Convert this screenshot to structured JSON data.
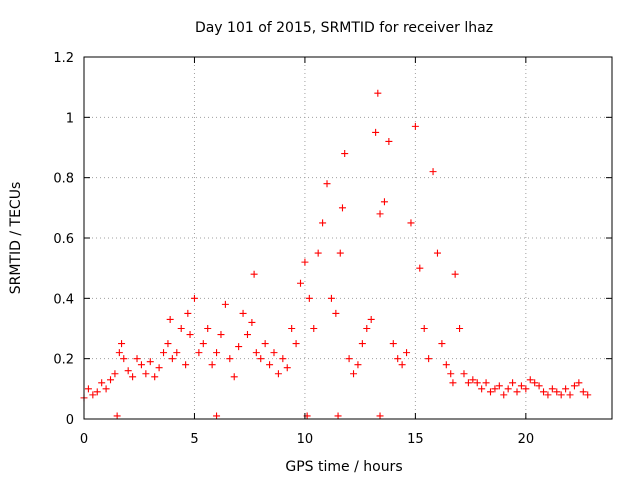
{
  "chart_data": {
    "type": "scatter",
    "title": "Day 101 of 2015, SRMTID for receiver lhaz",
    "xlabel": "GPS time / hours",
    "ylabel": "SRMTID / TECUs",
    "xlim": [
      0,
      23.9
    ],
    "ylim": [
      0,
      1.2
    ],
    "xticks": [
      0,
      5,
      10,
      15,
      20
    ],
    "xtick_labels": [
      "0",
      "5",
      "10",
      "15",
      "20"
    ],
    "yticks": [
      0,
      0.2,
      0.4,
      0.6,
      0.8,
      1,
      1.2
    ],
    "ytick_labels": [
      "0",
      "0.2",
      "0.4",
      "0.6",
      "0.8",
      "1",
      "1.2"
    ],
    "grid": true,
    "marker": "plus",
    "series": [
      {
        "name": "SRMTID",
        "color": "#ff0000",
        "x": [
          0.0,
          0.2,
          0.4,
          0.6,
          0.8,
          1.0,
          1.2,
          1.4,
          1.6,
          1.7,
          1.8,
          2.0,
          2.2,
          2.4,
          2.6,
          2.8,
          3.0,
          3.2,
          3.4,
          3.6,
          3.8,
          3.9,
          4.0,
          4.2,
          4.4,
          4.6,
          4.7,
          4.8,
          5.0,
          5.2,
          5.4,
          5.6,
          5.8,
          6.0,
          6.2,
          6.4,
          6.6,
          6.8,
          7.0,
          7.2,
          7.4,
          7.6,
          7.7,
          7.8,
          8.0,
          8.2,
          8.4,
          8.6,
          8.8,
          9.0,
          9.2,
          9.4,
          9.6,
          9.8,
          10.0,
          10.2,
          10.4,
          10.6,
          10.8,
          11.0,
          11.2,
          11.4,
          11.6,
          11.7,
          11.8,
          12.0,
          12.2,
          12.4,
          12.6,
          12.8,
          13.0,
          13.2,
          13.3,
          13.4,
          13.6,
          13.8,
          14.0,
          14.2,
          14.4,
          14.6,
          14.8,
          15.0,
          15.2,
          15.4,
          15.6,
          15.8,
          16.0,
          16.2,
          16.4,
          16.6,
          16.7,
          16.8,
          17.0,
          17.2,
          17.4,
          17.6,
          17.8,
          18.0,
          18.2,
          18.4,
          18.6,
          18.8,
          19.0,
          19.2,
          19.4,
          19.6,
          19.8,
          20.0,
          20.2,
          20.4,
          20.6,
          20.8,
          21.0,
          21.2,
          21.4,
          21.6,
          21.8,
          22.0,
          22.2,
          22.4,
          22.6,
          22.8,
          1.5,
          6.0,
          10.1,
          11.5,
          13.4
        ],
        "y": [
          0.07,
          0.1,
          0.08,
          0.09,
          0.12,
          0.1,
          0.13,
          0.15,
          0.22,
          0.25,
          0.2,
          0.16,
          0.14,
          0.2,
          0.18,
          0.15,
          0.19,
          0.14,
          0.17,
          0.22,
          0.25,
          0.33,
          0.2,
          0.22,
          0.3,
          0.18,
          0.35,
          0.28,
          0.4,
          0.22,
          0.25,
          0.3,
          0.18,
          0.22,
          0.28,
          0.38,
          0.2,
          0.14,
          0.24,
          0.35,
          0.28,
          0.32,
          0.48,
          0.22,
          0.2,
          0.25,
          0.18,
          0.22,
          0.15,
          0.2,
          0.17,
          0.3,
          0.25,
          0.45,
          0.52,
          0.4,
          0.3,
          0.55,
          0.65,
          0.78,
          0.4,
          0.35,
          0.55,
          0.7,
          0.88,
          0.2,
          0.15,
          0.18,
          0.25,
          0.3,
          0.33,
          0.95,
          1.08,
          0.68,
          0.72,
          0.92,
          0.25,
          0.2,
          0.18,
          0.22,
          0.65,
          0.97,
          0.5,
          0.3,
          0.2,
          0.82,
          0.55,
          0.25,
          0.18,
          0.15,
          0.12,
          0.48,
          0.3,
          0.15,
          0.12,
          0.13,
          0.12,
          0.1,
          0.12,
          0.09,
          0.1,
          0.11,
          0.08,
          0.1,
          0.12,
          0.09,
          0.11,
          0.1,
          0.13,
          0.12,
          0.11,
          0.09,
          0.08,
          0.1,
          0.09,
          0.08,
          0.1,
          0.08,
          0.11,
          0.12,
          0.09,
          0.08,
          0.01,
          0.01,
          0.01,
          0.01,
          0.01
        ]
      }
    ]
  }
}
